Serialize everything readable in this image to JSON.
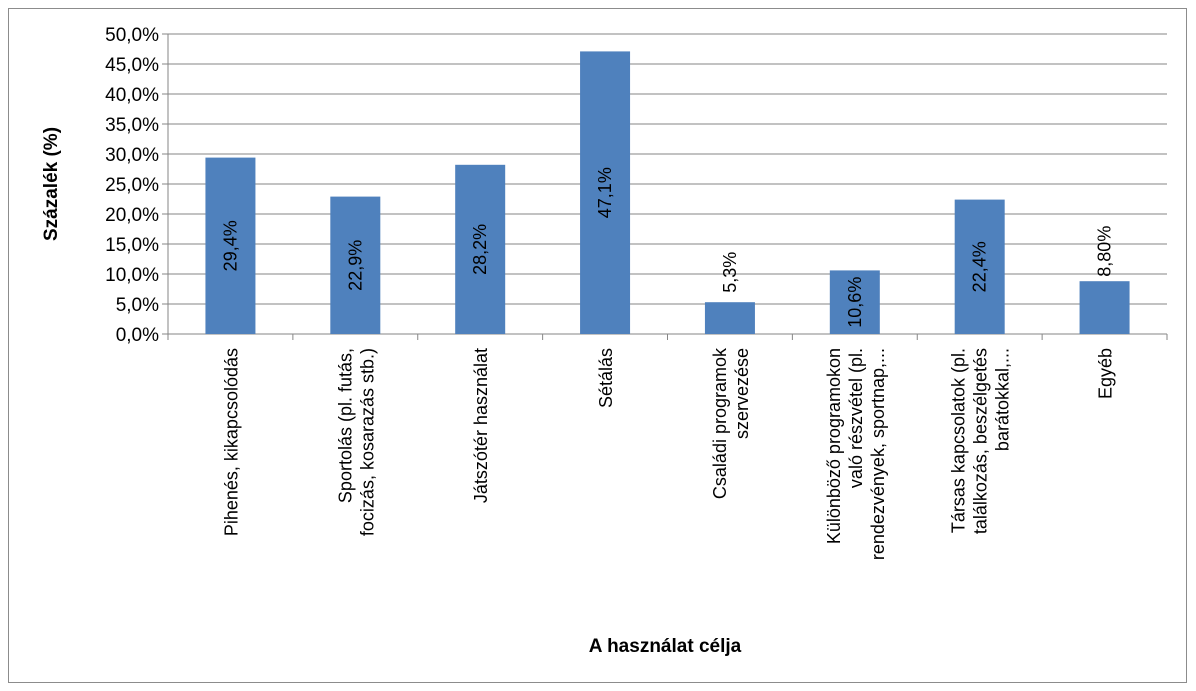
{
  "chart_data": {
    "type": "bar",
    "xlabel": "A használat célja",
    "ylabel": "Százalék (%)",
    "ylim": [
      0,
      50
    ],
    "ytick_step": 5,
    "ytick_labels": [
      "0,0%",
      "5,0%",
      "10,0%",
      "15,0%",
      "20,0%",
      "25,0%",
      "30,0%",
      "35,0%",
      "40,0%",
      "45,0%",
      "50,0%"
    ],
    "grid": true,
    "bar_color": "#4f81bd",
    "categories": [
      [
        "Pihenés, kikapcsolódás"
      ],
      [
        "Sportolás (pl. futás,",
        "focizás, kosarazás stb.)"
      ],
      [
        "Játszótér használat"
      ],
      [
        "Sétálás"
      ],
      [
        "Családi programok",
        "szervezése"
      ],
      [
        "Különböző programokon",
        "való részvétel (pl.",
        "rendezvények, sportnap,..."
      ],
      [
        "Társas kapcsolatok (pl.",
        "találkozás, beszélgetés",
        "barátokkal,..."
      ],
      [
        "Egyéb"
      ]
    ],
    "values": [
      29.4,
      22.9,
      28.2,
      47.1,
      5.3,
      10.6,
      22.4,
      8.8
    ],
    "data_labels": [
      "29,4%",
      "22,9%",
      "28,2%",
      "47,1%",
      "5,3%",
      "10,6%",
      "22,4%",
      "8,80%"
    ]
  }
}
